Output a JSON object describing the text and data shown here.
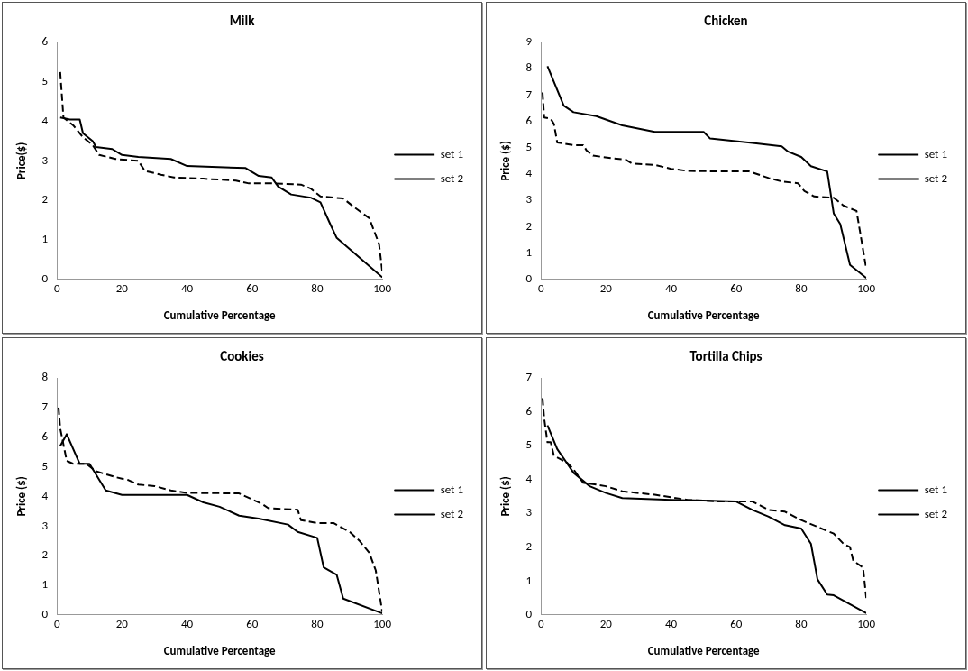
{
  "chart_data": [
    {
      "type": "line",
      "title": "Milk",
      "xlabel": "Cumulative Percentage",
      "ylabel": "Price($)",
      "xlim": [
        0,
        100
      ],
      "xticks": [
        0,
        20,
        40,
        60,
        80,
        100
      ],
      "ylim": [
        0,
        6
      ],
      "yticks": [
        0,
        1,
        2,
        3,
        4,
        5,
        6
      ],
      "grid": false,
      "legend": "right",
      "marker": "none",
      "series": [
        {
          "name": "set 1",
          "color": "#000000",
          "line_style": "dashed",
          "x": [
            1,
            2,
            5,
            8,
            11,
            13,
            18,
            25,
            27,
            32,
            36,
            45,
            55,
            59,
            67,
            75,
            78,
            81,
            88,
            91,
            96,
            99,
            100
          ],
          "values": [
            5.25,
            4.1,
            3.9,
            3.6,
            3.4,
            3.15,
            3.05,
            3.0,
            2.75,
            2.65,
            2.58,
            2.55,
            2.5,
            2.43,
            2.43,
            2.4,
            2.3,
            2.1,
            2.05,
            1.85,
            1.55,
            0.9,
            0.2
          ]
        },
        {
          "name": "set 2",
          "color": "#000000",
          "line_style": "solid",
          "x": [
            1,
            4,
            7,
            8,
            11,
            12,
            17,
            20,
            25,
            35,
            40,
            58,
            62,
            66,
            68,
            72,
            78,
            81,
            84,
            86,
            100
          ],
          "values": [
            4.1,
            4.05,
            4.05,
            3.7,
            3.5,
            3.35,
            3.3,
            3.15,
            3.1,
            3.05,
            2.87,
            2.82,
            2.62,
            2.58,
            2.35,
            2.15,
            2.07,
            1.95,
            1.4,
            1.05,
            0.05
          ]
        }
      ]
    },
    {
      "type": "line",
      "title": "Chicken",
      "xlabel": "Cumulative Percentage",
      "ylabel": "Price ($)",
      "xlim": [
        0,
        100
      ],
      "xticks": [
        0,
        20,
        40,
        60,
        80,
        100
      ],
      "ylim": [
        0,
        9
      ],
      "yticks": [
        0,
        1,
        2,
        3,
        4,
        5,
        6,
        7,
        8,
        9
      ],
      "grid": false,
      "legend": "right",
      "marker": "none",
      "series": [
        {
          "name": "set 1",
          "color": "#000000",
          "line_style": "dashed",
          "x": [
            0.5,
            1,
            3,
            4,
            5,
            10,
            13,
            14,
            16,
            22,
            26,
            28,
            35,
            40,
            45,
            55,
            64,
            70,
            74,
            79,
            81,
            84,
            90,
            93,
            97,
            100
          ],
          "values": [
            7.1,
            6.15,
            6.1,
            5.9,
            5.2,
            5.1,
            5.1,
            4.9,
            4.7,
            4.6,
            4.55,
            4.4,
            4.35,
            4.2,
            4.12,
            4.1,
            4.1,
            3.85,
            3.72,
            3.65,
            3.35,
            3.15,
            3.1,
            2.8,
            2.6,
            0.4
          ]
        },
        {
          "name": "set 2",
          "color": "#000000",
          "line_style": "solid",
          "x": [
            2,
            7,
            10,
            17,
            25,
            35,
            50,
            52,
            65,
            74,
            76,
            80,
            83,
            88,
            90,
            92,
            95,
            100
          ],
          "values": [
            8.1,
            6.6,
            6.35,
            6.2,
            5.85,
            5.6,
            5.6,
            5.35,
            5.18,
            5.05,
            4.85,
            4.65,
            4.3,
            4.1,
            2.5,
            2.1,
            0.55,
            0.05
          ]
        }
      ]
    },
    {
      "type": "line",
      "title": "Cookies",
      "xlabel": "Cumulative Percentage",
      "ylabel": "Price ($)",
      "xlim": [
        0,
        100
      ],
      "xticks": [
        0,
        20,
        40,
        60,
        80,
        100
      ],
      "ylim": [
        0,
        8
      ],
      "yticks": [
        0,
        1,
        2,
        3,
        4,
        5,
        6,
        7,
        8
      ],
      "grid": false,
      "legend": "right",
      "marker": "none",
      "series": [
        {
          "name": "set 1",
          "color": "#000000",
          "line_style": "dashed",
          "x": [
            0.5,
            1,
            3,
            5,
            9,
            12,
            18,
            22,
            25,
            30,
            35,
            40,
            56,
            60,
            63,
            65,
            74,
            75,
            80,
            85,
            90,
            93,
            96,
            98,
            100
          ],
          "values": [
            7.0,
            6.3,
            5.2,
            5.1,
            5.1,
            4.85,
            4.65,
            4.55,
            4.4,
            4.35,
            4.2,
            4.12,
            4.1,
            3.9,
            3.75,
            3.6,
            3.55,
            3.2,
            3.1,
            3.1,
            2.8,
            2.5,
            2.1,
            1.5,
            0.1
          ]
        },
        {
          "name": "set 2",
          "color": "#000000",
          "line_style": "solid",
          "x": [
            1,
            3,
            7,
            10,
            15,
            20,
            40,
            45,
            50,
            56,
            62,
            71,
            74,
            80,
            82,
            86,
            88,
            100
          ],
          "values": [
            5.7,
            6.1,
            5.1,
            5.1,
            4.2,
            4.05,
            4.05,
            3.8,
            3.65,
            3.35,
            3.25,
            3.05,
            2.8,
            2.6,
            1.6,
            1.35,
            0.55,
            0.05
          ]
        }
      ]
    },
    {
      "type": "line",
      "title": "Tortilla Chips",
      "xlabel": "Cumulative Percentage",
      "ylabel": "Price ($)",
      "xlim": [
        0,
        100
      ],
      "xticks": [
        0,
        20,
        40,
        60,
        80,
        100
      ],
      "ylim": [
        0,
        7
      ],
      "yticks": [
        0,
        1,
        2,
        3,
        4,
        5,
        6,
        7
      ],
      "grid": false,
      "legend": "right",
      "marker": "none",
      "series": [
        {
          "name": "set 1",
          "color": "#000000",
          "line_style": "dashed",
          "x": [
            0.5,
            1,
            2,
            3,
            4,
            8,
            10,
            13,
            17,
            20,
            25,
            35,
            45,
            55,
            65,
            70,
            75,
            80,
            85,
            90,
            93,
            95,
            96,
            99,
            100
          ],
          "values": [
            6.4,
            5.8,
            5.1,
            5.1,
            4.7,
            4.5,
            4.3,
            3.9,
            3.85,
            3.8,
            3.65,
            3.55,
            3.4,
            3.35,
            3.35,
            3.1,
            3.05,
            2.8,
            2.6,
            2.4,
            2.1,
            2.0,
            1.6,
            1.4,
            0.5
          ]
        },
        {
          "name": "set 2",
          "color": "#000000",
          "line_style": "solid",
          "x": [
            2,
            5,
            10,
            15,
            20,
            25,
            40,
            60,
            65,
            70,
            75,
            80,
            83,
            85,
            88,
            90,
            100
          ],
          "values": [
            5.6,
            4.9,
            4.2,
            3.8,
            3.6,
            3.45,
            3.4,
            3.35,
            3.1,
            2.9,
            2.65,
            2.55,
            2.1,
            1.05,
            0.6,
            0.58,
            0.05
          ]
        }
      ]
    }
  ]
}
